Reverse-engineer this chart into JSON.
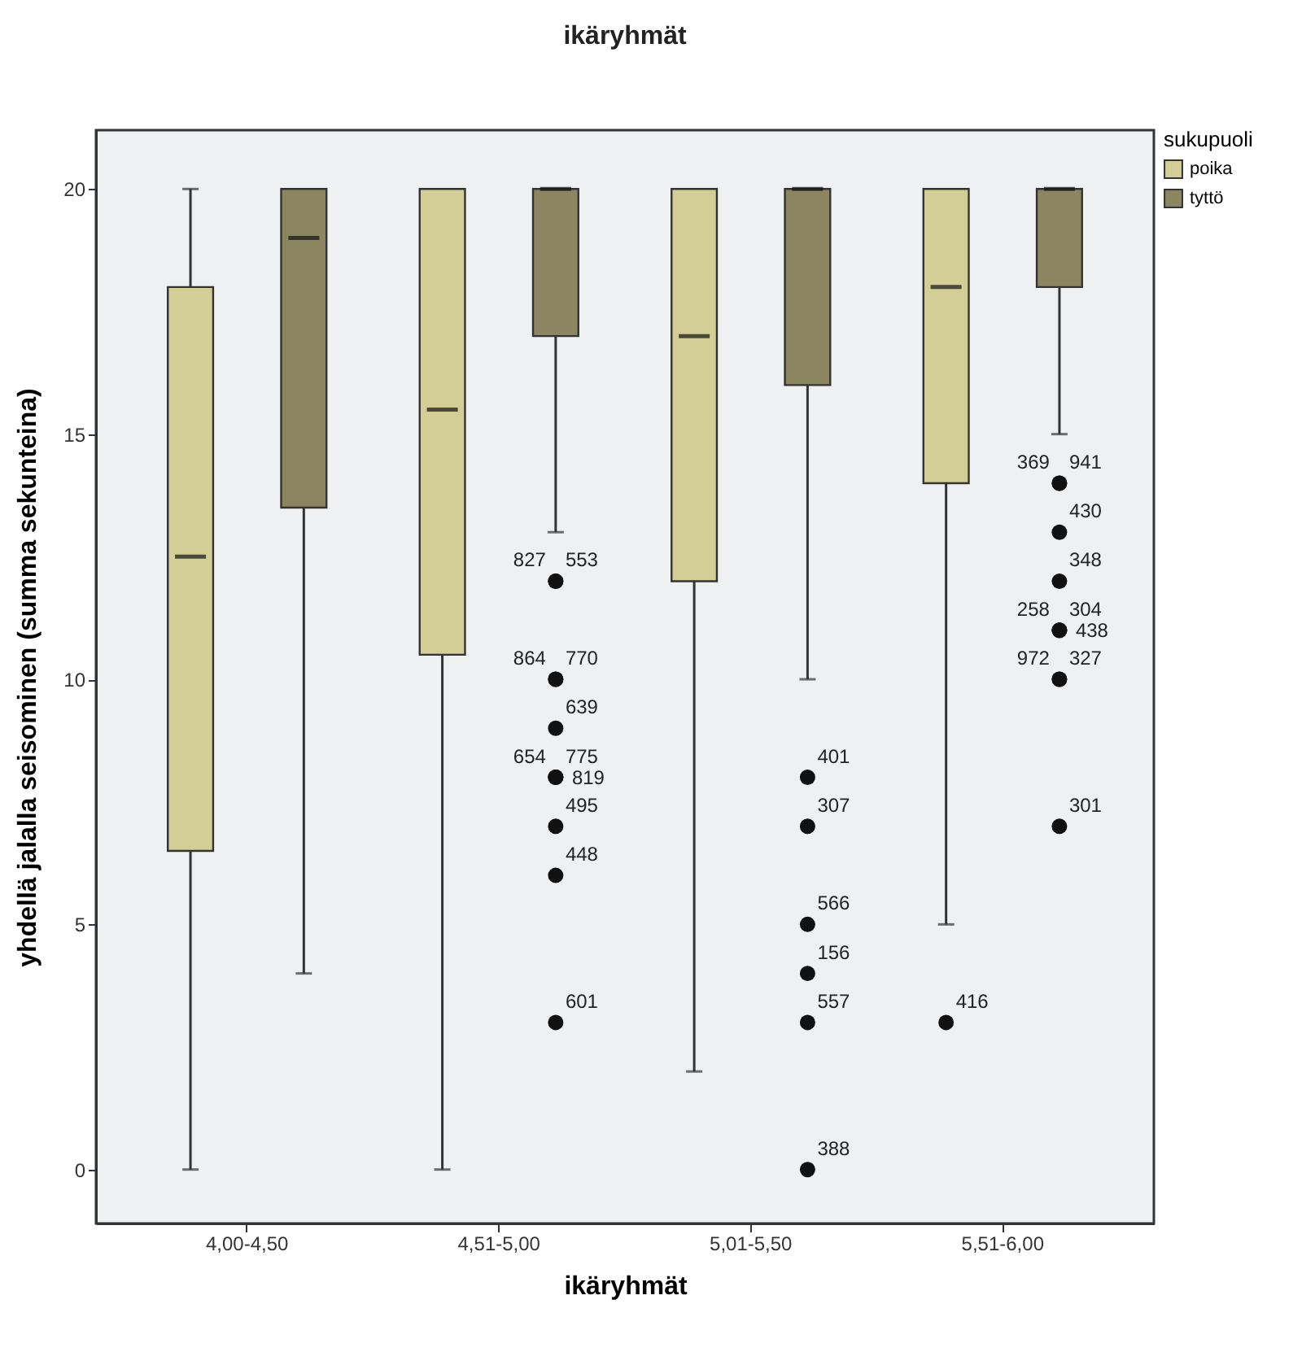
{
  "chart_data": {
    "type": "box",
    "title": "ikäryhmät",
    "xlabel": "ikäryhmät",
    "ylabel": "yhdellä jalalla seisominen (summa sekunteina)",
    "legend_title": "sukupuoli",
    "legend": "top right",
    "grid": false,
    "categories": [
      "4,00-4,50",
      "4,51-5,00",
      "5,01-5,50",
      "5,51-6,00"
    ],
    "ylim": [
      -1.1,
      21.2
    ],
    "yticks": [
      0,
      5,
      10,
      15,
      20
    ],
    "series": [
      {
        "name": "poika",
        "color": "#d3cd96",
        "boxes": [
          {
            "low": 0,
            "q1": 6.5,
            "median": 12.5,
            "q3": 18,
            "high": 20
          },
          {
            "low": 0,
            "q1": 10.5,
            "median": 15.5,
            "q3": 20,
            "high": 20
          },
          {
            "low": 2,
            "q1": 12,
            "median": 17,
            "q3": 20,
            "high": 20
          },
          {
            "low": 5,
            "q1": 14,
            "median": 18,
            "q3": 20,
            "high": 20,
            "outliers": [
              3
            ]
          }
        ]
      },
      {
        "name": "tyttö",
        "color": "#8c8660",
        "boxes": [
          {
            "low": 4,
            "q1": 13.5,
            "median": 19,
            "q3": 20,
            "high": 20
          },
          {
            "low": 13,
            "q1": 17,
            "median": 20,
            "q3": 20,
            "high": 20,
            "outliers": [
              12,
              12,
              10,
              10,
              9,
              8,
              8,
              8,
              7,
              6,
              3
            ]
          },
          {
            "low": 10,
            "q1": 16,
            "median": 20,
            "q3": 20,
            "high": 20,
            "outliers": [
              8,
              7,
              5,
              4,
              3,
              0
            ]
          },
          {
            "low": 15,
            "q1": 18,
            "median": 20,
            "q3": 20,
            "high": 20,
            "outliers": [
              14,
              14,
              13,
              12,
              11,
              11,
              11,
              10,
              10,
              7
            ]
          }
        ]
      }
    ],
    "annotations": [
      "416",
      "553",
      "827",
      "770",
      "864",
      "639",
      "775",
      "654",
      "819",
      "495",
      "448",
      "601",
      "401",
      "307",
      "566",
      "156",
      "557",
      "388",
      "941",
      "369",
      "430",
      "348",
      "304",
      "258",
      "438",
      "327",
      "972",
      "301"
    ]
  }
}
